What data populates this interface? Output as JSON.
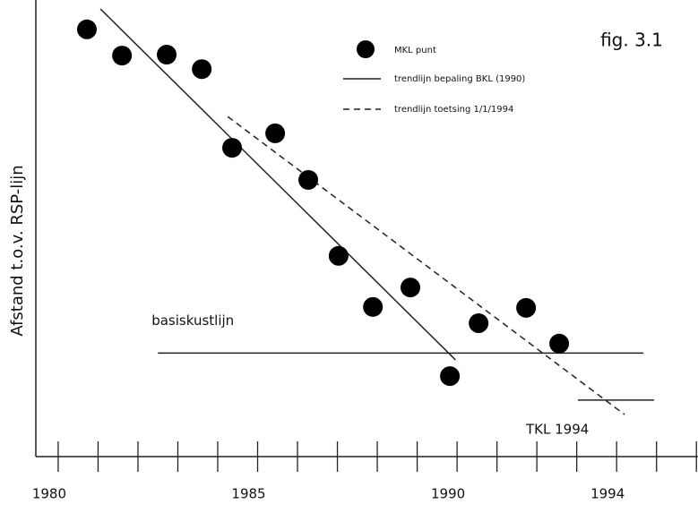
{
  "chart_data": {
    "type": "scatter",
    "title": "fig. 3.1",
    "y_label": "Afstand t.o.v. RSP-lijn",
    "xlim": [
      1979.44,
      1996.04
    ],
    "ylim": [
      0,
      100
    ],
    "xticks": [
      1980,
      1985,
      1990,
      1994
    ],
    "minor_xticks": [
      1980,
      1981,
      1982,
      1983,
      1984,
      1985,
      1986,
      1987,
      1988,
      1989,
      1990,
      1991,
      1992,
      1993,
      1994,
      1995,
      1996
    ],
    "series": [
      {
        "name": "MKL punt",
        "color": "#000000",
        "x": [
          1980.72,
          1981.6,
          1982.72,
          1983.6,
          1984.36,
          1985.44,
          1986.27,
          1987.03,
          1987.89,
          1988.83,
          1989.82,
          1990.54,
          1991.73,
          1992.56
        ],
        "values": [
          94.5,
          88.7,
          88.9,
          85.7,
          68.3,
          71.5,
          61.2,
          44.4,
          33.1,
          37.4,
          17.8,
          29.5,
          32.9,
          25.0
        ]
      }
    ],
    "trendlines": [
      {
        "name": "trendlijn bepaling BKL (1990)",
        "style": "solid",
        "x": [
          1981.06,
          1989.96
        ],
        "values": [
          99.0,
          21.4
        ]
      },
      {
        "name": "trendlijn toetsing 1/1/1994",
        "style": "dashed",
        "x": [
          1984.25,
          1994.2
        ],
        "values": [
          75.2,
          9.3
        ]
      }
    ],
    "reference_lines": [
      {
        "label": "basiskustlijn",
        "x": [
          1982.5,
          1994.67
        ],
        "values": [
          22.9,
          22.9
        ]
      },
      {
        "label": "TKL 1994",
        "x": [
          1993.03,
          1994.94
        ],
        "values": [
          12.5,
          12.5
        ]
      }
    ],
    "legend": "top-right"
  }
}
